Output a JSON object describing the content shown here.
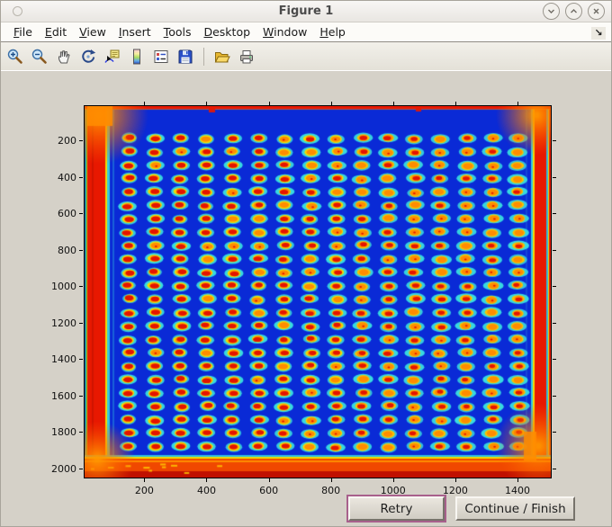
{
  "window": {
    "title": "Figure 1",
    "controls": [
      "minimize",
      "maximize",
      "close"
    ]
  },
  "menu_bar": {
    "items": [
      "File",
      "Edit",
      "View",
      "Insert",
      "Tools",
      "Desktop",
      "Window",
      "Help"
    ],
    "dock_icon_glyph": "↘"
  },
  "toolbar": {
    "buttons": [
      "zoom-in",
      "zoom-out",
      "pan",
      "rotate-3d",
      "data-cursor",
      "insert-colorbar",
      "insert-legend",
      "save-figure",
      "open-file",
      "print-figure"
    ]
  },
  "figure": {
    "axes": {
      "x_ticks": [
        "200",
        "400",
        "600",
        "800",
        "1000",
        "1200",
        "1400"
      ],
      "y_ticks": [
        "200",
        "400",
        "600",
        "800",
        "1000",
        "1200",
        "1400",
        "1600",
        "1800",
        "2000"
      ],
      "x_range": [
        5,
        1510
      ],
      "y_range": [
        5,
        2055
      ]
    },
    "image": {
      "description": "Microarray slide scan shown in jet colormap: deep blue background, 16 x 24 grid of hybridization spots (cyan halo, yellow ring, red-orange core), saturated red bands along all slide edges with orange corner blooms.",
      "grid_cols": 16,
      "grid_rows": 24,
      "colors": {
        "background": "#0a2ad6",
        "halo": "#38dcdc",
        "ring": "#f2dc00",
        "ring_right": "#f6c400",
        "core_orange": "#ff8c00",
        "core_red": "#e41400",
        "edge_red": "#e81800",
        "edge_orange": "#ff8c00",
        "edge_dark_red": "#c01000"
      }
    }
  },
  "action_buttons": {
    "retry": "Retry",
    "continue": "Continue / Finish"
  }
}
